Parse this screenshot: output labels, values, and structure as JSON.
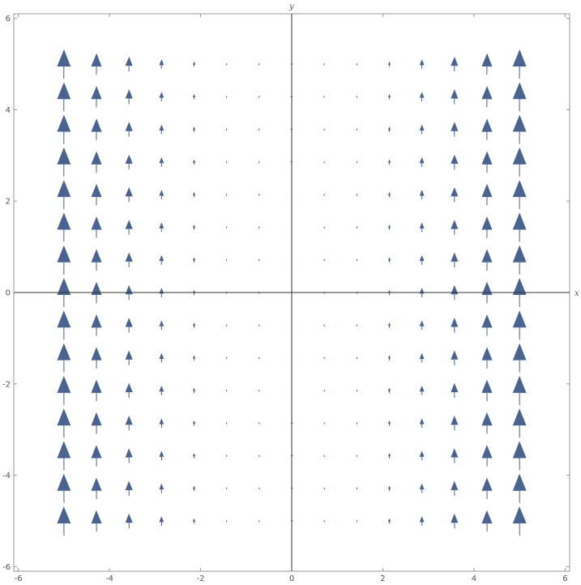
{
  "chart_data": {
    "type": "vector-field",
    "xlabel": "x",
    "ylabel": "y",
    "xlim": [
      -6.1,
      6.1
    ],
    "ylim": [
      -6.1,
      6.1
    ],
    "xticks": [
      -6,
      -4,
      -2,
      0,
      2,
      4,
      6
    ],
    "yticks": [
      -6,
      -4,
      -2,
      0,
      2,
      4,
      6
    ],
    "xtick_labels": [
      "-6",
      "-4",
      "-2",
      "0",
      "2",
      "4",
      "6"
    ],
    "ytick_labels": [
      "-6",
      "-4",
      "-2",
      "0",
      "2",
      "4",
      "6"
    ],
    "grid": false,
    "arrow_color": "#4a6391",
    "axis_color": "#333333",
    "frame_color": "#999999",
    "field": {
      "u": "0.04*y",
      "v": "x^2",
      "x_samples": [
        -5,
        -4.2857,
        -3.5714,
        -2.8571,
        -2.1429,
        -1.4286,
        -0.7143,
        0,
        0.7143,
        1.4286,
        2.1429,
        2.8571,
        3.5714,
        4.2857,
        5
      ],
      "y_samples": [
        -5,
        -4.2857,
        -3.5714,
        -2.8571,
        -2.1429,
        -1.4286,
        -0.7143,
        0,
        0.7143,
        1.4286,
        2.1429,
        2.8571,
        3.5714,
        4.2857,
        5
      ]
    }
  }
}
